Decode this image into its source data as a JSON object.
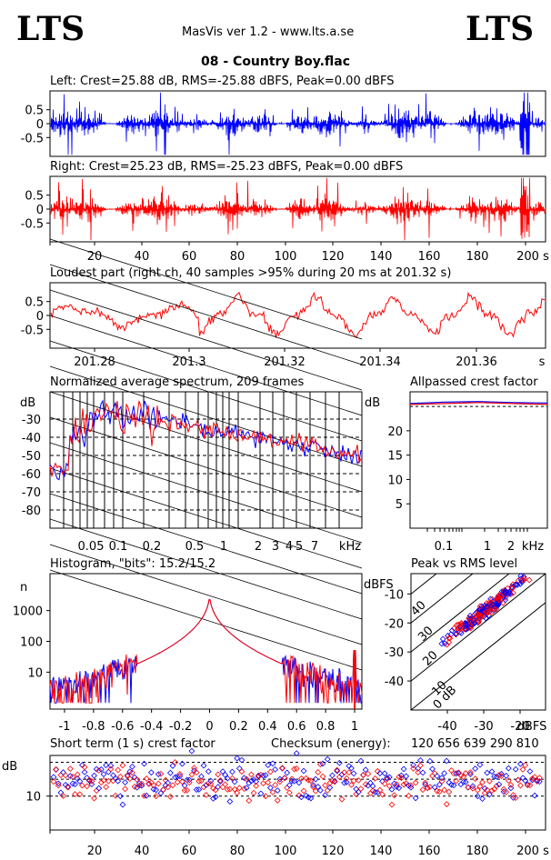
{
  "header": {
    "logo_left": "LTS",
    "logo_right": "LTS",
    "app_title": "MasVis ver 1.2 - www.lts.a.se",
    "file_title": "08 - Country Boy.flac"
  },
  "colors": {
    "left": "#0000ff",
    "right": "#ff0000",
    "grid": "#000000"
  },
  "checksum": {
    "label": "Checksum (energy):",
    "value": "120 656 639 290 810"
  },
  "chart_data": [
    {
      "id": "left",
      "type": "line",
      "title": "Left: Crest=25.88 dB, RMS=-25.88 dBFS, Peak=0.00 dBFS",
      "series": [
        {
          "name": "Left",
          "color": "#0000ff"
        }
      ],
      "ylim": [
        -1,
        1
      ],
      "yticks": [
        "0.5",
        "0",
        "-0.5"
      ],
      "xlim": [
        0,
        205
      ]
    },
    {
      "id": "right",
      "type": "line",
      "title": "Right: Crest=25.23 dB, RMS=-25.23 dBFS, Peak=0.00 dBFS",
      "series": [
        {
          "name": "Right",
          "color": "#ff0000"
        }
      ],
      "ylim": [
        -1,
        1
      ],
      "yticks": [
        "0.5",
        "0",
        "-0.5"
      ],
      "xlim": [
        0,
        205
      ],
      "xticks": [
        "20",
        "40",
        "60",
        "80",
        "100",
        "120",
        "140",
        "160",
        "180",
        "200 s"
      ]
    },
    {
      "id": "loudest",
      "type": "line",
      "title": "Loudest part (right ch, 40 samples >95% during 20 ms at 201.32 s)",
      "ylim": [
        -1,
        1
      ],
      "yticks": [
        "0.5",
        "0",
        "-0.5"
      ],
      "xlim": [
        201.272,
        201.376
      ],
      "xticks": [
        "201.28",
        "201.3",
        "201.32",
        "201.34",
        "201.36",
        "s"
      ]
    },
    {
      "id": "spectrum",
      "type": "line",
      "title": "Normalized average spectrum, 209 frames",
      "ylabel": "dB",
      "yticks": [
        "-30",
        "-40",
        "-50",
        "-60",
        "-70",
        "-80"
      ],
      "ylim": [
        -90,
        -15
      ],
      "xticks": [
        "0.05",
        "0.1",
        "0.2",
        "0.5",
        "1",
        "2",
        "3",
        "4",
        "5",
        "7",
        "kHz"
      ],
      "xscale": "log"
    },
    {
      "id": "allpass",
      "type": "line",
      "title": "Allpassed crest factor",
      "ylabel": "dB",
      "yticks": [
        "20",
        "15",
        "10",
        "5"
      ],
      "ylim": [
        0,
        28
      ],
      "xticks": [
        "0.1",
        "1",
        "2",
        "kHz"
      ],
      "xscale": "log",
      "series": [
        {
          "name": "Left",
          "values": [
            25.6,
            25.9,
            26.0,
            25.8,
            25.7
          ]
        },
        {
          "name": "Right",
          "values": [
            25.4,
            25.6,
            25.8,
            25.6,
            25.4
          ]
        }
      ]
    },
    {
      "id": "histogram",
      "type": "line",
      "title": "Histogram, \"bits\": 15.2/15.2",
      "ylabel": "n",
      "yticks": [
        "1000",
        "100",
        "10"
      ],
      "yscale": "log",
      "xlim": [
        -1.1,
        1.05
      ],
      "xticks": [
        "-1",
        "-0.8",
        "-0.6",
        "-0.4",
        "-0.2",
        "0",
        "0.2",
        "0.4",
        "0.6",
        "0.8",
        "1"
      ]
    },
    {
      "id": "peak_rms",
      "type": "scatter",
      "title": "Peak vs RMS level",
      "ylabel": "dBFS",
      "xlabel": "dBFS",
      "yticks": [
        "-10",
        "-20",
        "-30",
        "-40"
      ],
      "xticks": [
        "-40",
        "-30",
        "-20"
      ],
      "diagonals": [
        "40",
        "30",
        "20",
        "10",
        "0 dB"
      ]
    },
    {
      "id": "crest_short",
      "type": "scatter",
      "title": "Short term (1 s) crest factor",
      "ylabel": "dB",
      "yticks": [
        "10"
      ],
      "xlim": [
        0,
        205
      ],
      "xticks": [
        "20",
        "40",
        "60",
        "80",
        "100",
        "120",
        "140",
        "160",
        "180",
        "200 s"
      ]
    }
  ]
}
